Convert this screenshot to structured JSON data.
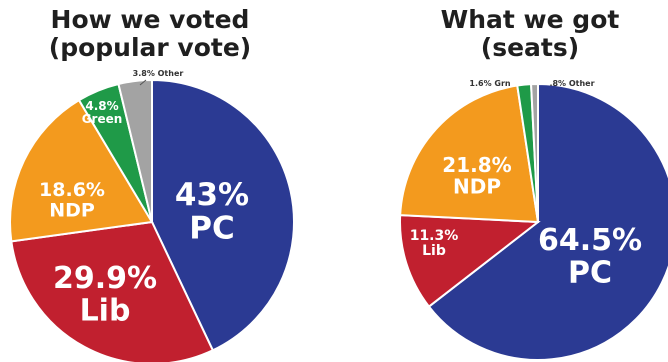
{
  "chart_data": [
    {
      "type": "pie",
      "title_lines": [
        "How we voted",
        "(popular vote)"
      ],
      "slices": [
        {
          "key": "pc",
          "name": "PC",
          "value": 43,
          "value_label": "43%",
          "color": "#2b3a93",
          "text_color": "#ffffff"
        },
        {
          "key": "lib",
          "name": "Lib",
          "value": 29.9,
          "value_label": "29.9%",
          "color": "#c1202f",
          "text_color": "#ffffff"
        },
        {
          "key": "ndp",
          "name": "NDP",
          "value": 18.6,
          "value_label": "18.6%",
          "color": "#f39a1e",
          "text_color": "#ffffff"
        },
        {
          "key": "green",
          "name": "Green",
          "value": 4.8,
          "value_label": "4.8%",
          "color": "#1f9a48",
          "text_color": "#ffffff"
        },
        {
          "key": "other",
          "name": "Other",
          "value": 3.8,
          "value_label": "3.8%",
          "color": "#a3a3a3",
          "text_color": "#333333"
        }
      ]
    },
    {
      "type": "pie",
      "title_lines": [
        "What we got",
        "(seats)"
      ],
      "slices": [
        {
          "key": "pc",
          "name": "PC",
          "value": 64.5,
          "value_label": "64.5%",
          "color": "#2b3a93",
          "text_color": "#ffffff"
        },
        {
          "key": "lib",
          "name": "Lib",
          "value": 11.3,
          "value_label": "11.3%",
          "color": "#c1202f",
          "text_color": "#ffffff"
        },
        {
          "key": "ndp",
          "name": "NDP",
          "value": 21.8,
          "value_label": "21.8%",
          "color": "#f39a1e",
          "text_color": "#ffffff"
        },
        {
          "key": "green",
          "name": "Grn",
          "value": 1.6,
          "value_label": "1.6%",
          "color": "#1f9a48",
          "text_color": "#333333"
        },
        {
          "key": "other",
          "name": "Other",
          "value": 0.8,
          "value_label": ".8%",
          "color": "#a3a3a3",
          "text_color": "#333333"
        }
      ]
    }
  ]
}
